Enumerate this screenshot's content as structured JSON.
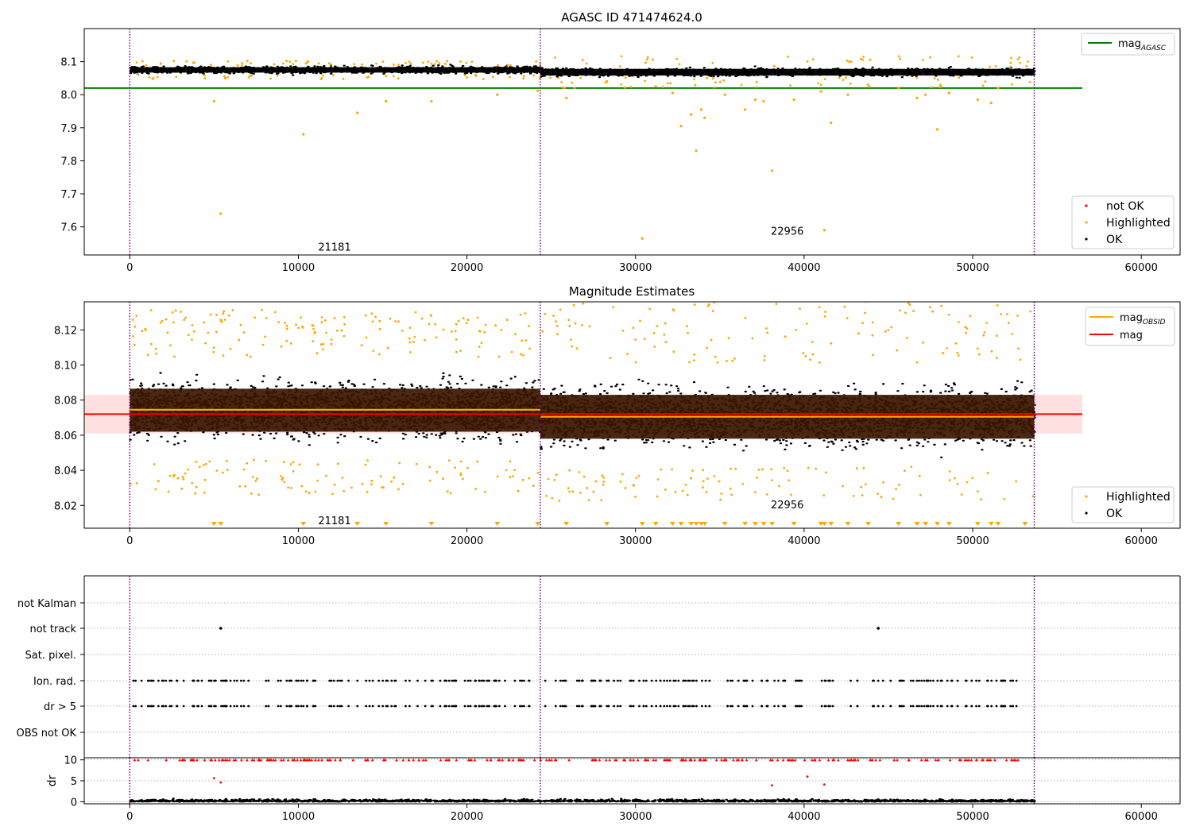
{
  "colors": {
    "ok": "#000000",
    "highlighted": "#ffa500",
    "not_ok": "#ff0000",
    "agasc_line": "#008000",
    "obsid_line": "#ffa500",
    "mag_line": "#ff0000",
    "mag_band": "#ffcccc",
    "obs_boundary": "#800080",
    "resid_fill": "#3a1600"
  },
  "chart_data": [
    {
      "type": "scatter",
      "title": "AGASC ID 471474624.0",
      "xlabel": "",
      "ylabel": "",
      "xlim": [
        -2700,
        62300
      ],
      "ylim": [
        7.515,
        8.2
      ],
      "xticks": [
        0,
        10000,
        20000,
        30000,
        40000,
        50000,
        60000
      ],
      "xtick_labels": [
        "0",
        "10000",
        "20000",
        "30000",
        "40000",
        "50000",
        "60000"
      ],
      "yticks": [
        7.6,
        7.7,
        7.8,
        7.9,
        8.0,
        8.1
      ],
      "ytick_labels": [
        "7.6",
        "7.7",
        "7.8",
        "7.9",
        "8.0",
        "8.1"
      ],
      "obs_boundaries": [
        0,
        24350,
        53650
      ],
      "obsid_labels": [
        {
          "text": "21181",
          "x": 12150,
          "y": 7.54
        },
        {
          "text": "22956",
          "x": 39000,
          "y": 7.588
        }
      ],
      "agasc_mag": 8.02,
      "agasc_line_x": [
        -2700,
        56500
      ],
      "band_segments": [
        {
          "x0": 0,
          "x1": 24350,
          "center": 8.075,
          "half": 0.013
        },
        {
          "x0": 24350,
          "x1": 53650,
          "center": 8.068,
          "half": 0.015
        }
      ],
      "highlighted_outliers": [
        [
          5000,
          7.98
        ],
        [
          10300,
          7.88
        ],
        [
          5400,
          7.64
        ],
        [
          13500,
          7.945
        ],
        [
          15200,
          7.98
        ],
        [
          17900,
          7.98
        ],
        [
          21800,
          8.0
        ],
        [
          24200,
          8.012
        ],
        [
          25900,
          7.99
        ],
        [
          28300,
          8.04
        ],
        [
          30400,
          7.565
        ],
        [
          31200,
          8.025
        ],
        [
          32200,
          8.005
        ],
        [
          32700,
          7.905
        ],
        [
          33300,
          7.94
        ],
        [
          33600,
          7.83
        ],
        [
          33900,
          7.955
        ],
        [
          34100,
          7.93
        ],
        [
          35300,
          8.0
        ],
        [
          36500,
          7.955
        ],
        [
          37100,
          7.985
        ],
        [
          37600,
          7.98
        ],
        [
          38100,
          7.77
        ],
        [
          39400,
          7.985
        ],
        [
          41000,
          8.01
        ],
        [
          41200,
          7.59
        ],
        [
          41600,
          7.915
        ],
        [
          42600,
          8.0
        ],
        [
          43800,
          8.03
        ],
        [
          45600,
          8.02
        ],
        [
          46700,
          7.99
        ],
        [
          47200,
          8.0
        ],
        [
          47900,
          7.895
        ],
        [
          48600,
          8.005
        ],
        [
          50300,
          7.985
        ],
        [
          51100,
          7.975
        ],
        [
          51500,
          8.02
        ]
      ],
      "legend_top": {
        "position": "upper-right",
        "entries": [
          {
            "name": "mag",
            "sub": "AGASC"
          }
        ]
      },
      "legend_bottom": {
        "position": "lower-right",
        "entries": [
          {
            "name": "not OK"
          },
          {
            "name": "Highlighted"
          },
          {
            "name": "OK"
          }
        ]
      }
    },
    {
      "type": "scatter",
      "title": "Magnitude Estimates",
      "xlabel": "",
      "ylabel": "",
      "xlim": [
        -2700,
        62300
      ],
      "ylim": [
        8.007,
        8.136
      ],
      "xticks": [
        0,
        10000,
        20000,
        30000,
        40000,
        50000,
        60000
      ],
      "xtick_labels": [
        "0",
        "10000",
        "20000",
        "30000",
        "40000",
        "50000",
        "60000"
      ],
      "yticks": [
        8.02,
        8.04,
        8.06,
        8.08,
        8.1,
        8.12
      ],
      "ytick_labels": [
        "8.02",
        "8.04",
        "8.06",
        "8.08",
        "8.10",
        "8.12"
      ],
      "obs_boundaries": [
        0,
        24350,
        53650
      ],
      "obsid_labels": [
        {
          "text": "21181",
          "x": 12150,
          "y": 8.0115
        },
        {
          "text": "22956",
          "x": 39000,
          "y": 8.0205
        }
      ],
      "mag": 8.072,
      "mag_band": [
        8.061,
        8.083
      ],
      "mag_line_x": [
        -2700,
        56500
      ],
      "obsid_segments": [
        {
          "x0": 0,
          "x1": 24350,
          "mag": 8.0745
        },
        {
          "x0": 24350,
          "x1": 53650,
          "mag": 8.0705
        }
      ],
      "resid_bands": [
        {
          "x0": 0,
          "x1": 24350,
          "lo": 8.062,
          "hi": 8.0865
        },
        {
          "x0": 24350,
          "x1": 53650,
          "lo": 8.058,
          "hi": 8.083
        }
      ],
      "clipped_markers_x": [
        5000,
        5400,
        10300,
        13500,
        15200,
        17900,
        21800,
        24200,
        25900,
        28300,
        30400,
        31200,
        32200,
        32700,
        33300,
        33600,
        33900,
        34100,
        35300,
        36500,
        37100,
        37600,
        38100,
        39400,
        41000,
        41200,
        41600,
        42600,
        43800,
        45600,
        46700,
        47200,
        47900,
        48600,
        50300,
        51100,
        51500,
        53100
      ],
      "legend_top": {
        "position": "upper-right",
        "entries": [
          {
            "name": "mag",
            "sub": "OBSID"
          },
          {
            "name": "mag"
          }
        ]
      },
      "legend_bottom": {
        "position": "lower-right",
        "entries": [
          {
            "name": "Highlighted"
          },
          {
            "name": "OK"
          }
        ]
      }
    },
    {
      "type": "scatter",
      "title": "",
      "xlabel": "",
      "ylabel": "",
      "xlim": [
        -2700,
        62300
      ],
      "flag_categories": [
        "not Kalman",
        "not track",
        "Sat. pixel.",
        "Ion. rad.",
        "dr > 5",
        "OBS not OK"
      ],
      "obs_boundaries": [
        0,
        24350,
        53650
      ],
      "not_track_points": [
        5400,
        44400
      ]
    },
    {
      "type": "scatter",
      "title": "",
      "xlabel": "",
      "ylabel": "dr",
      "xlim": [
        -2700,
        62300
      ],
      "ylim": [
        -0.5,
        10.5
      ],
      "xticks": [
        0,
        10000,
        20000,
        30000,
        40000,
        50000,
        60000
      ],
      "xtick_labels": [
        "0",
        "10000",
        "20000",
        "30000",
        "40000",
        "50000",
        "60000"
      ],
      "yticks": [
        0,
        5,
        10
      ],
      "ytick_labels": [
        "0",
        "5",
        "10"
      ],
      "obs_boundaries": [
        0,
        24350,
        53650
      ],
      "red_outliers": [
        [
          5000,
          5.6
        ],
        [
          5400,
          4.6
        ],
        [
          38100,
          3.9
        ],
        [
          40200,
          6.0
        ],
        [
          41200,
          4.1
        ]
      ]
    }
  ]
}
